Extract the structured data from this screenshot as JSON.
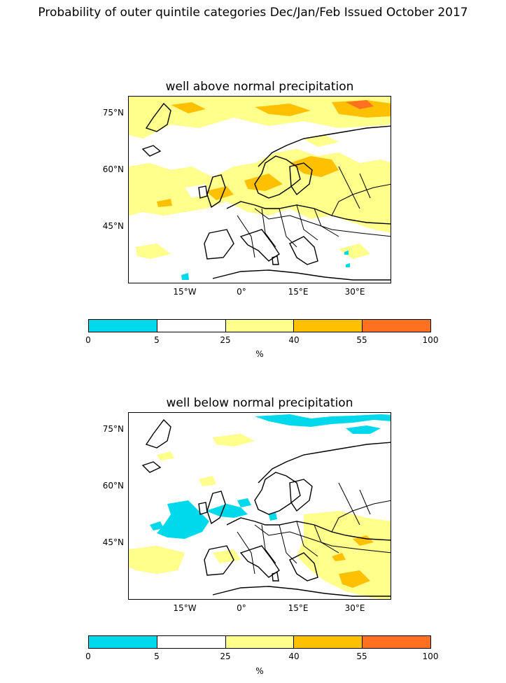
{
  "suptitle": "Probability of outer quintile categories Dec/Jan/Feb Issued October 2017",
  "panels": [
    {
      "title": "well above normal precipitation",
      "lat_labels": [
        "75°N",
        "60°N",
        "45°N"
      ],
      "lon_labels": [
        "15°W",
        "0°",
        "15°E",
        "30°E"
      ]
    },
    {
      "title": "well below normal precipitation",
      "lat_labels": [
        "75°N",
        "60°N",
        "45°N"
      ],
      "lon_labels": [
        "15°W",
        "0°",
        "15°E",
        "30°E"
      ]
    }
  ],
  "colorbar": {
    "ticks": [
      "0",
      "5",
      "25",
      "40",
      "55",
      "100"
    ],
    "unit": "%",
    "colors": [
      "#00d8ec",
      "#ffffff",
      "#ffff8c",
      "#ffc000",
      "#ff7020"
    ]
  },
  "colors": {
    "cyan": "#00d8ec",
    "light_yellow": "#ffff8c",
    "orange": "#ffc000",
    "red": "#ff7020"
  }
}
